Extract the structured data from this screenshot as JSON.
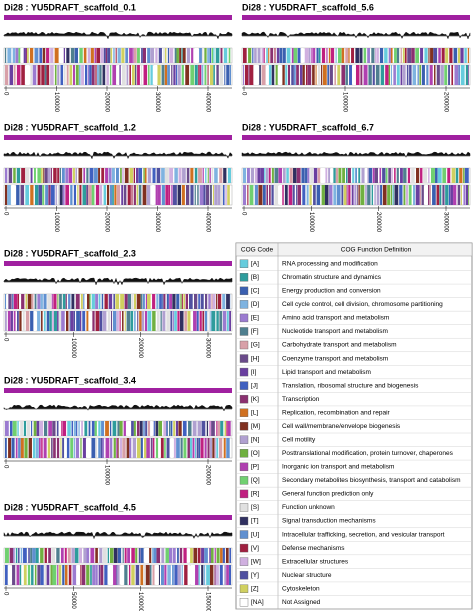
{
  "panels": [
    {
      "title": "Di28 : YU5DRAFT_scaffold_0.1",
      "ticks": [
        "0",
        "100000",
        "200000",
        "300000",
        "400000"
      ]
    },
    {
      "title": "Di28 : YU5DRAFT_scaffold_5.6",
      "ticks": [
        "0",
        "100000",
        "200000"
      ]
    },
    {
      "title": "Di28 : YU5DRAFT_scaffold_1.2",
      "ticks": [
        "0",
        "100000",
        "200000",
        "300000",
        "400000"
      ]
    },
    {
      "title": "Di28 : YU5DRAFT_scaffold_6.7",
      "ticks": [
        "0",
        "100000",
        "200000",
        "300000"
      ]
    },
    {
      "title": "Di28 : YU5DRAFT_scaffold_2.3",
      "ticks": [
        "0",
        "100000",
        "200000",
        "300000"
      ]
    },
    {
      "title": "Di28 : YU5DRAFT_scaffold_3.4",
      "ticks": [
        "0",
        "100000",
        "200000"
      ]
    },
    {
      "title": "Di28 : YU5DRAFT_scaffold_4.5",
      "ticks": [
        "0",
        "50000",
        "100000",
        "150000"
      ]
    }
  ],
  "legend": {
    "header": [
      "COG Code",
      "COG Function Definition"
    ],
    "rows": [
      {
        "code": "[A]",
        "definition": "RNA processing and modification",
        "color": "#66ccdd"
      },
      {
        "code": "[B]",
        "definition": "Chromatin structure and dynamics",
        "color": "#2e9c9c"
      },
      {
        "code": "[C]",
        "definition": "Energy production and conversion",
        "color": "#3a5fb0"
      },
      {
        "code": "[D]",
        "definition": "Cell cycle control, cell division, chromosome partitioning",
        "color": "#7fb3e0"
      },
      {
        "code": "[E]",
        "definition": "Amino acid transport and metabolism",
        "color": "#9b7bd0"
      },
      {
        "code": "[F]",
        "definition": "Nucleotide transport and metabolism",
        "color": "#4f7f8f"
      },
      {
        "code": "[G]",
        "definition": "Carbohydrate transport and metabolism",
        "color": "#d8a0a8"
      },
      {
        "code": "[H]",
        "definition": "Coenzyme transport and metabolism",
        "color": "#6a4a8a"
      },
      {
        "code": "[I]",
        "definition": "Lipid transport and metabolism",
        "color": "#6a3fa0"
      },
      {
        "code": "[J]",
        "definition": "Translation, ribosomal structure and biogenesis",
        "color": "#4060c0"
      },
      {
        "code": "[K]",
        "definition": "Transcription",
        "color": "#8a3070"
      },
      {
        "code": "[L]",
        "definition": "Replication, recombination and repair",
        "color": "#d07020"
      },
      {
        "code": "[M]",
        "definition": "Cell wall/membrane/envelope biogenesis",
        "color": "#803020"
      },
      {
        "code": "[N]",
        "definition": "Cell motility",
        "color": "#b0a0d0"
      },
      {
        "code": "[O]",
        "definition": "Posttranslational modification, protein turnover, chaperones",
        "color": "#70b040"
      },
      {
        "code": "[P]",
        "definition": "Inorganic ion transport and metabolism",
        "color": "#b040b0"
      },
      {
        "code": "[Q]",
        "definition": "Secondary metabolites biosynthesis, transport and catabolism",
        "color": "#70d070"
      },
      {
        "code": "[R]",
        "definition": "General function prediction only",
        "color": "#c02080"
      },
      {
        "code": "[S]",
        "definition": "Function unknown",
        "color": "#e0e0e0"
      },
      {
        "code": "[T]",
        "definition": "Signal transduction mechanisms",
        "color": "#303060"
      },
      {
        "code": "[U]",
        "definition": "Intracellular trafficking, secretion, and vesicular transport",
        "color": "#6090d0"
      },
      {
        "code": "[V]",
        "definition": "Defense mechanisms",
        "color": "#a02040"
      },
      {
        "code": "[W]",
        "definition": "Extracellular structures",
        "color": "#d0b0e0"
      },
      {
        "code": "[Y]",
        "definition": "Nuclear structure",
        "color": "#5050a0"
      },
      {
        "code": "[Z]",
        "definition": "Cytoskeleton",
        "color": "#d0d060"
      },
      {
        "code": "[NA]",
        "definition": "Not Assigned",
        "color": "#ffffff"
      }
    ]
  }
}
